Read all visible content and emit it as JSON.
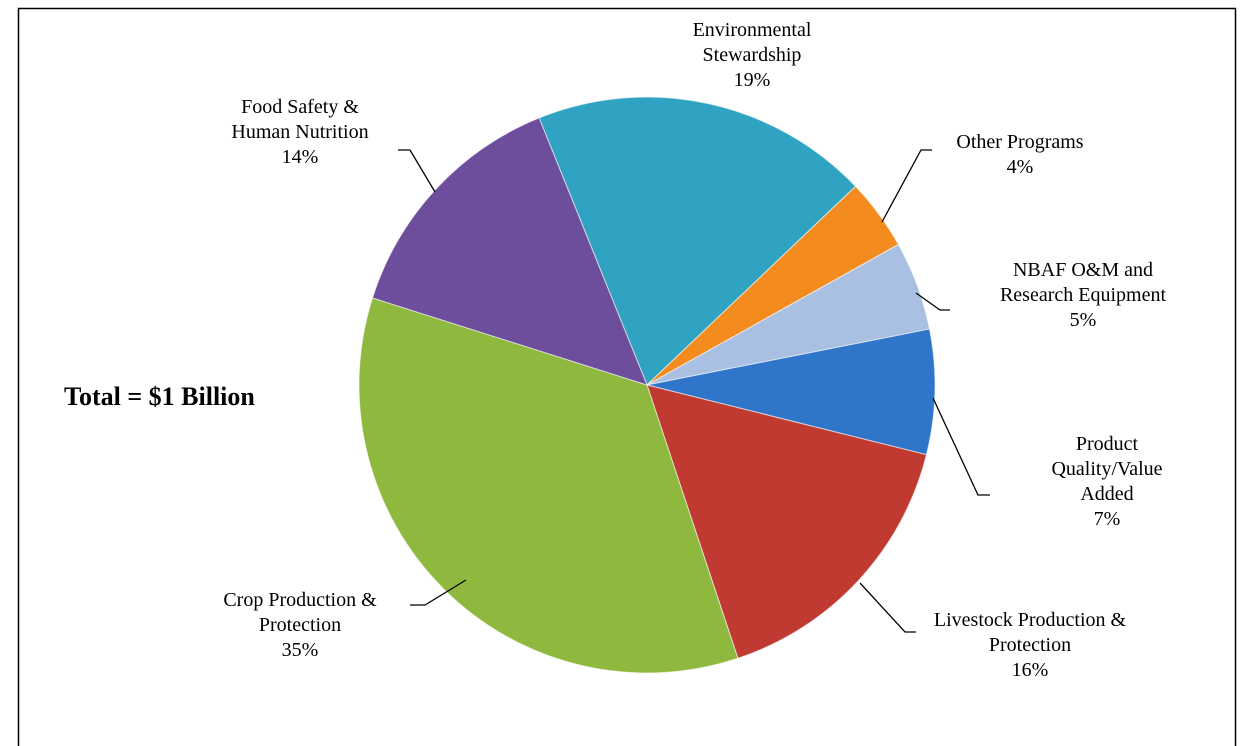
{
  "chart_data": {
    "type": "pie",
    "annotation": "Total = $1 Billion",
    "categories": [
      "Environmental Stewardship",
      "Other Programs",
      "NBAF O&M and Research Equipment",
      "Product Quality/Value Added",
      "Livestock Production & Protection",
      "Crop Production & Protection",
      "Food Safety & Human Nutrition"
    ],
    "values": [
      19,
      4,
      5,
      7,
      16,
      35,
      14
    ],
    "value_labels": [
      "19%",
      "4%",
      "5%",
      "7%",
      "16%",
      "35%",
      "14%"
    ],
    "colors": [
      "#31a3c2",
      "#f38b1f",
      "#a9c0e2",
      "#2f76cb",
      "#c13a32",
      "#8fb83f",
      "#6d4e9c"
    ]
  }
}
